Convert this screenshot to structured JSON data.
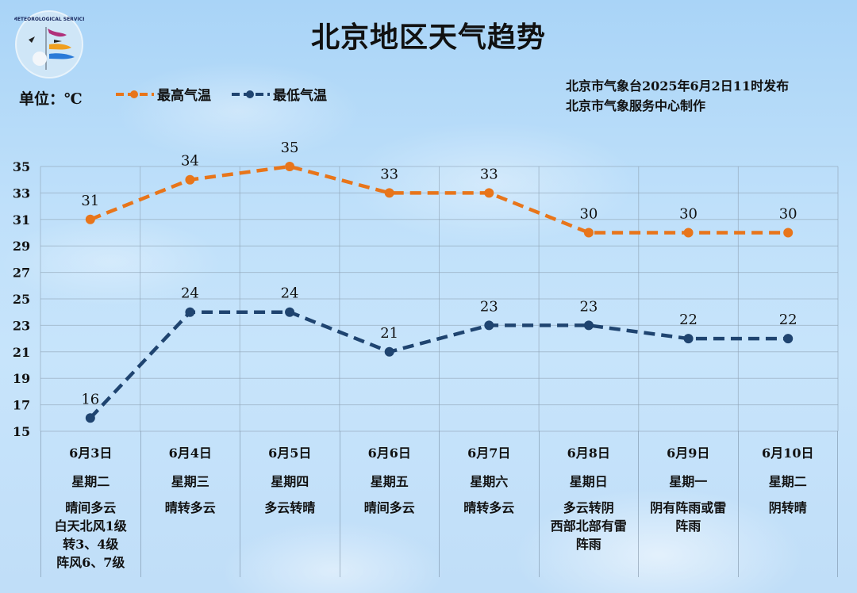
{
  "header": {
    "title": "北京地区天气趋势",
    "unit_label": "单位：℃",
    "publisher_line1": "北京市气象台2025年6月2日11时发布",
    "publisher_line2": "北京市气象服务中心制作",
    "logo_text": "METEOROLOGICAL SERVICE · BEIJING 气象北京"
  },
  "legend": {
    "high_label": "最高气温",
    "low_label": "最低气温"
  },
  "colors": {
    "high": "#e8751a",
    "low": "#1f4470",
    "grid": "#8fa3b5"
  },
  "days": [
    {
      "date": "6月3日",
      "weekday": "星期二",
      "desc": "晴间多云\n白天北风1级\n转3、4级\n阵风6、7级"
    },
    {
      "date": "6月4日",
      "weekday": "星期三",
      "desc": "晴转多云"
    },
    {
      "date": "6月5日",
      "weekday": "星期四",
      "desc": "多云转晴"
    },
    {
      "date": "6月6日",
      "weekday": "星期五",
      "desc": "晴间多云"
    },
    {
      "date": "6月7日",
      "weekday": "星期六",
      "desc": "晴转多云"
    },
    {
      "date": "6月8日",
      "weekday": "星期日",
      "desc": "多云转阴\n西部北部有雷\n阵雨"
    },
    {
      "date": "6月9日",
      "weekday": "星期一",
      "desc": "阴有阵雨或雷\n阵雨"
    },
    {
      "date": "6月10日",
      "weekday": "星期二",
      "desc": "阴转晴"
    }
  ],
  "chart_data": {
    "type": "line",
    "title": "北京地区天气趋势",
    "xlabel": "",
    "ylabel": "单位：℃",
    "categories": [
      "6月3日",
      "6月4日",
      "6月5日",
      "6月6日",
      "6月7日",
      "6月8日",
      "6月9日",
      "6月10日"
    ],
    "series": [
      {
        "name": "最高气温",
        "values": [
          31,
          34,
          35,
          33,
          33,
          30,
          30,
          30
        ],
        "color": "#e8751a",
        "style": "dashed",
        "markers": true
      },
      {
        "name": "最低气温",
        "values": [
          16,
          24,
          24,
          21,
          23,
          23,
          22,
          22
        ],
        "color": "#1f4470",
        "style": "dashed",
        "markers": true
      }
    ],
    "yticks": [
      15,
      17,
      19,
      21,
      23,
      25,
      27,
      29,
      31,
      33,
      35
    ],
    "ylim": [
      15,
      35
    ],
    "grid": true,
    "data_labels": true,
    "legend_position": "top-left"
  }
}
